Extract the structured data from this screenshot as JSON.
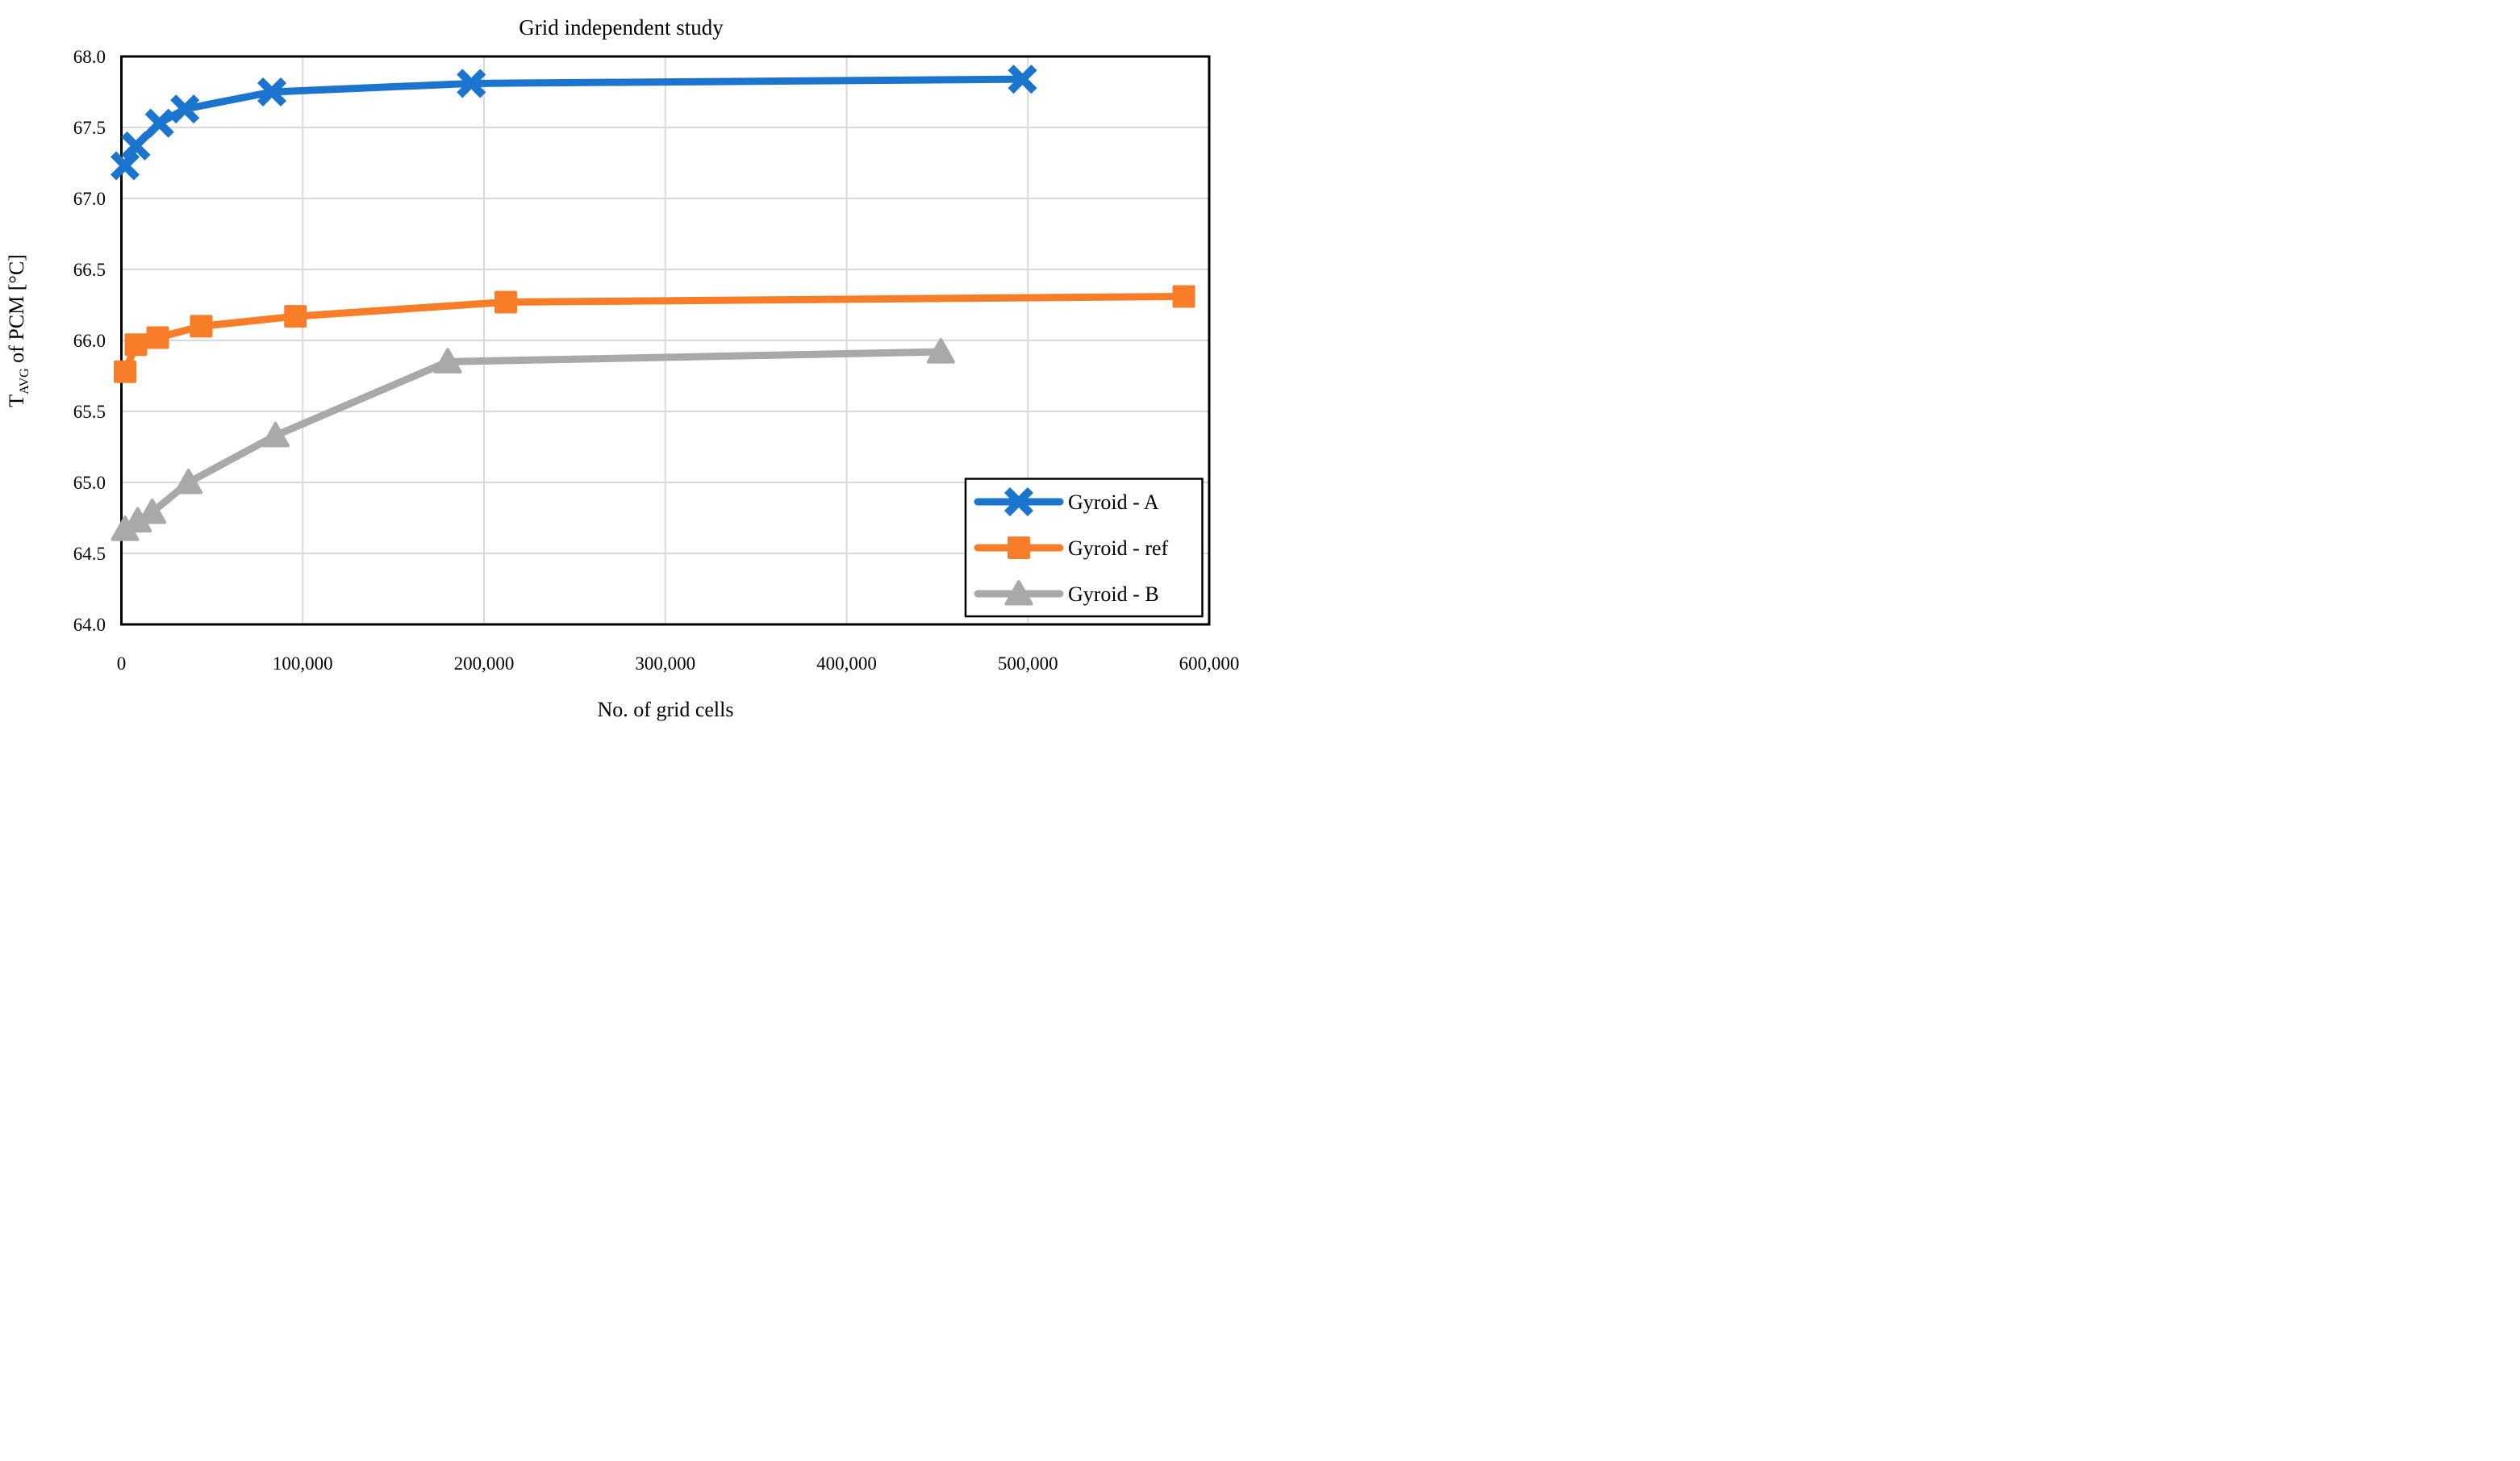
{
  "chart_data": {
    "type": "line",
    "title": "Grid independent study",
    "xlabel": "No. of grid cells",
    "ylabel": {
      "pre": "T",
      "sub": "AVG",
      "post": " of PCM [°C]",
      "full": "T_AVG of PCM [°C]"
    },
    "xlim": [
      0,
      600000
    ],
    "ylim": [
      64.0,
      68.0
    ],
    "grid": true,
    "x_ticks": [
      {
        "value": 0,
        "label": "0"
      },
      {
        "value": 100000,
        "label": "100,000"
      },
      {
        "value": 200000,
        "label": "200,000"
      },
      {
        "value": 300000,
        "label": "300,000"
      },
      {
        "value": 400000,
        "label": "400,000"
      },
      {
        "value": 500000,
        "label": "500,000"
      },
      {
        "value": 600000,
        "label": "600,000"
      }
    ],
    "y_ticks": [
      {
        "value": 64.0,
        "label": "64.0"
      },
      {
        "value": 64.5,
        "label": "64.5"
      },
      {
        "value": 65.0,
        "label": "65.0"
      },
      {
        "value": 65.5,
        "label": "65.5"
      },
      {
        "value": 66.0,
        "label": "66.0"
      },
      {
        "value": 66.5,
        "label": "66.5"
      },
      {
        "value": 67.0,
        "label": "67.0"
      },
      {
        "value": 67.5,
        "label": "67.5"
      },
      {
        "value": 68.0,
        "label": "68.0"
      }
    ],
    "legend": {
      "position": "inside-bottom-right",
      "border_color": "#000000",
      "background": "#FFFFFF"
    },
    "colors": {
      "background": "#FFFFFF",
      "plot_border": "#000000",
      "gridline": "#D9D9D9",
      "text": "#000000"
    },
    "series": [
      {
        "name": "Gyroid - A",
        "color": "#1B74CE",
        "marker": "x",
        "points": [
          [
            2000,
            67.23
          ],
          [
            8000,
            67.37
          ],
          [
            21000,
            67.53
          ],
          [
            35000,
            67.63
          ],
          [
            83000,
            67.75
          ],
          [
            193000,
            67.81
          ],
          [
            497000,
            67.84
          ]
        ]
      },
      {
        "name": "Gyroid - ref",
        "color": "#F87D28",
        "marker": "square",
        "points": [
          [
            2000,
            65.78
          ],
          [
            8000,
            65.97
          ],
          [
            20000,
            66.02
          ],
          [
            44000,
            66.1
          ],
          [
            96000,
            66.17
          ],
          [
            212000,
            66.27
          ],
          [
            586000,
            66.31
          ]
        ]
      },
      {
        "name": "Gyroid - B",
        "color": "#A9A9A9",
        "marker": "triangle",
        "points": [
          [
            2000,
            64.67
          ],
          [
            9000,
            64.73
          ],
          [
            17000,
            64.79
          ],
          [
            37000,
            65.0
          ],
          [
            85000,
            65.33
          ],
          [
            180000,
            65.85
          ],
          [
            452000,
            65.92
          ]
        ]
      }
    ]
  }
}
